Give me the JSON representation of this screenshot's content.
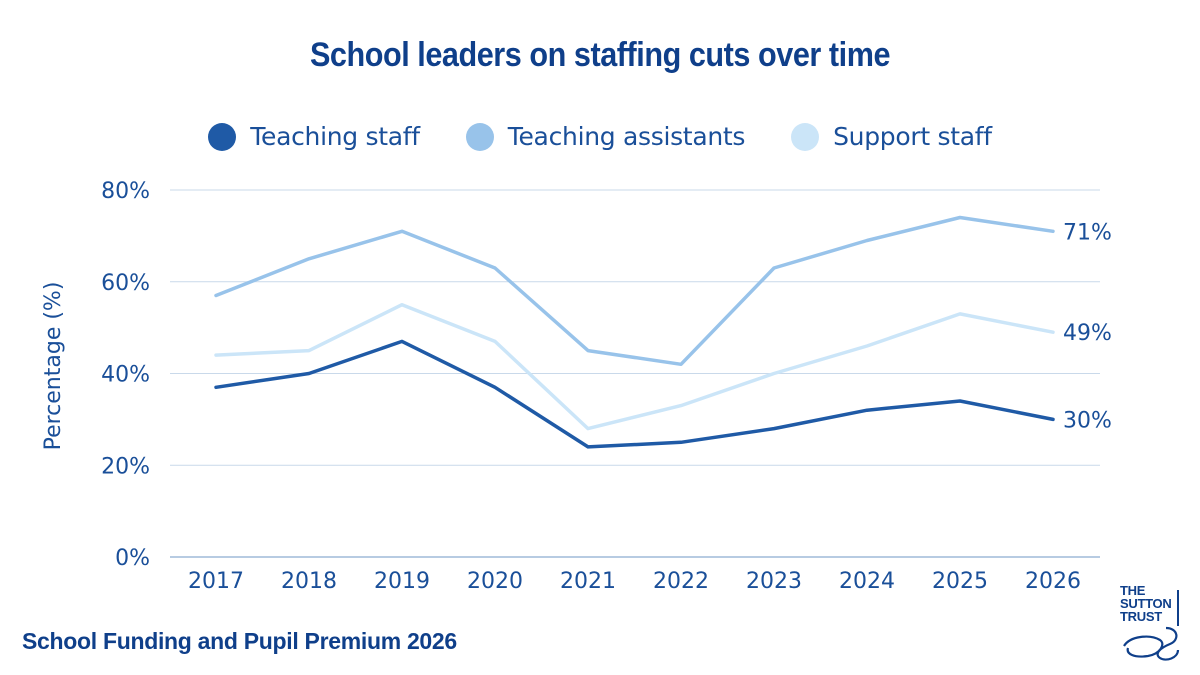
{
  "chart_data": {
    "type": "line",
    "title": "School leaders on staffing cuts over time",
    "ylabel": "Percentage (%)",
    "xlabel": "",
    "x": [
      "2017",
      "2018",
      "2019",
      "2020",
      "2021",
      "2022",
      "2023",
      "2024",
      "2025",
      "2026"
    ],
    "ylim": [
      0,
      80
    ],
    "yticks": [
      "0%",
      "20%",
      "40%",
      "60%",
      "80%"
    ],
    "grid": true,
    "legend_position": "top-center",
    "series": [
      {
        "name": "Teaching staff",
        "color": "#1f5aa6",
        "values": [
          37,
          40,
          47,
          37,
          24,
          25,
          28,
          32,
          34,
          30
        ],
        "end_label": "30%"
      },
      {
        "name": "Teaching assistants",
        "color": "#98c3ea",
        "values": [
          57,
          65,
          71,
          63,
          45,
          42,
          63,
          69,
          74,
          71
        ],
        "end_label": "71%"
      },
      {
        "name": "Support staff",
        "color": "#cbe5f8",
        "values": [
          44,
          45,
          55,
          47,
          28,
          33,
          40,
          46,
          53,
          49
        ],
        "end_label": "49%"
      }
    ]
  },
  "footer": {
    "text": "School Funding and Pupil Premium 2026"
  },
  "logo": {
    "lines": [
      "THE",
      "SUTTON",
      "TRUST"
    ]
  },
  "colors": {
    "title": "#0f3f8a",
    "axis_text": "#1a4f99",
    "grid": "#c9d9ea"
  }
}
